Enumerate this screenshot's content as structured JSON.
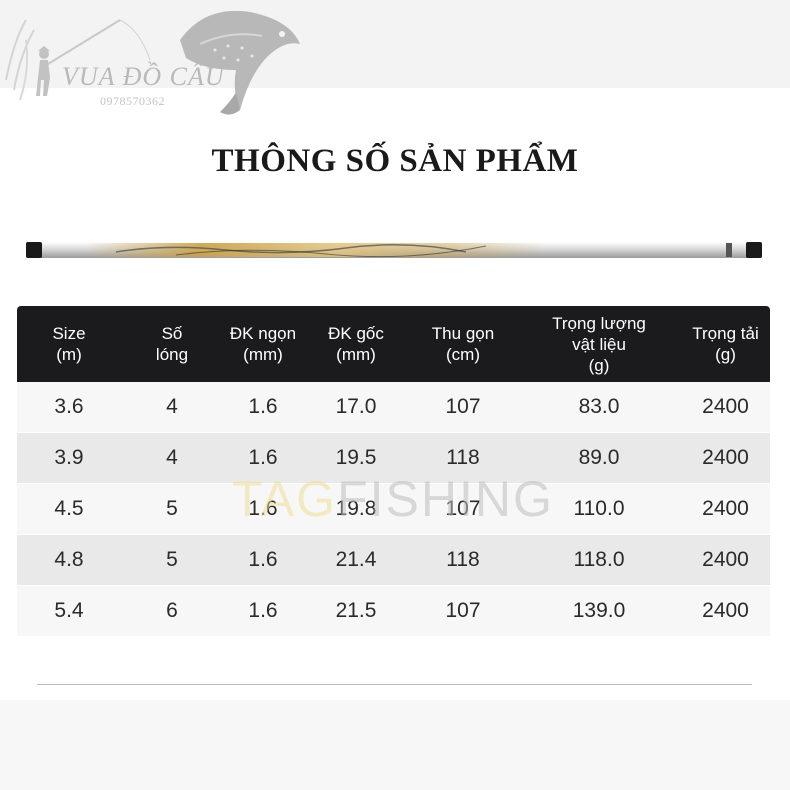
{
  "brand": {
    "name": "VUA ĐỒ CÂU",
    "phone": "0978570362"
  },
  "page_title": "THÔNG SỐ SẢN PHẨM",
  "watermark": {
    "part1": "TAG",
    "part2": "FISHING"
  },
  "table": {
    "columns": [
      "Size\n(m)",
      "Số\nlóng",
      "ĐK ngọn\n(mm)",
      "ĐK gốc\n(mm)",
      "Thu gọn\n(cm)",
      "Trọng lượng\nvật liệu\n(g)",
      "Trọng tải\n(g)"
    ],
    "rows": [
      [
        "3.6",
        "4",
        "1.6",
        "17.0",
        "107",
        "83.0",
        "2400"
      ],
      [
        "3.9",
        "4",
        "1.6",
        "19.5",
        "118",
        "89.0",
        "2400"
      ],
      [
        "4.5",
        "5",
        "1.6",
        "19.8",
        "107",
        "110.0",
        "2400"
      ],
      [
        "4.8",
        "5",
        "1.6",
        "21.4",
        "118",
        "118.0",
        "2400"
      ],
      [
        "5.4",
        "6",
        "1.6",
        "21.5",
        "107",
        "139.0",
        "2400"
      ]
    ]
  },
  "colors": {
    "header_bg": "#1b1b1d",
    "row_light": "#f7f7f7",
    "row_dark": "#e9e9e9",
    "rod_gold": "#c9a24a"
  }
}
